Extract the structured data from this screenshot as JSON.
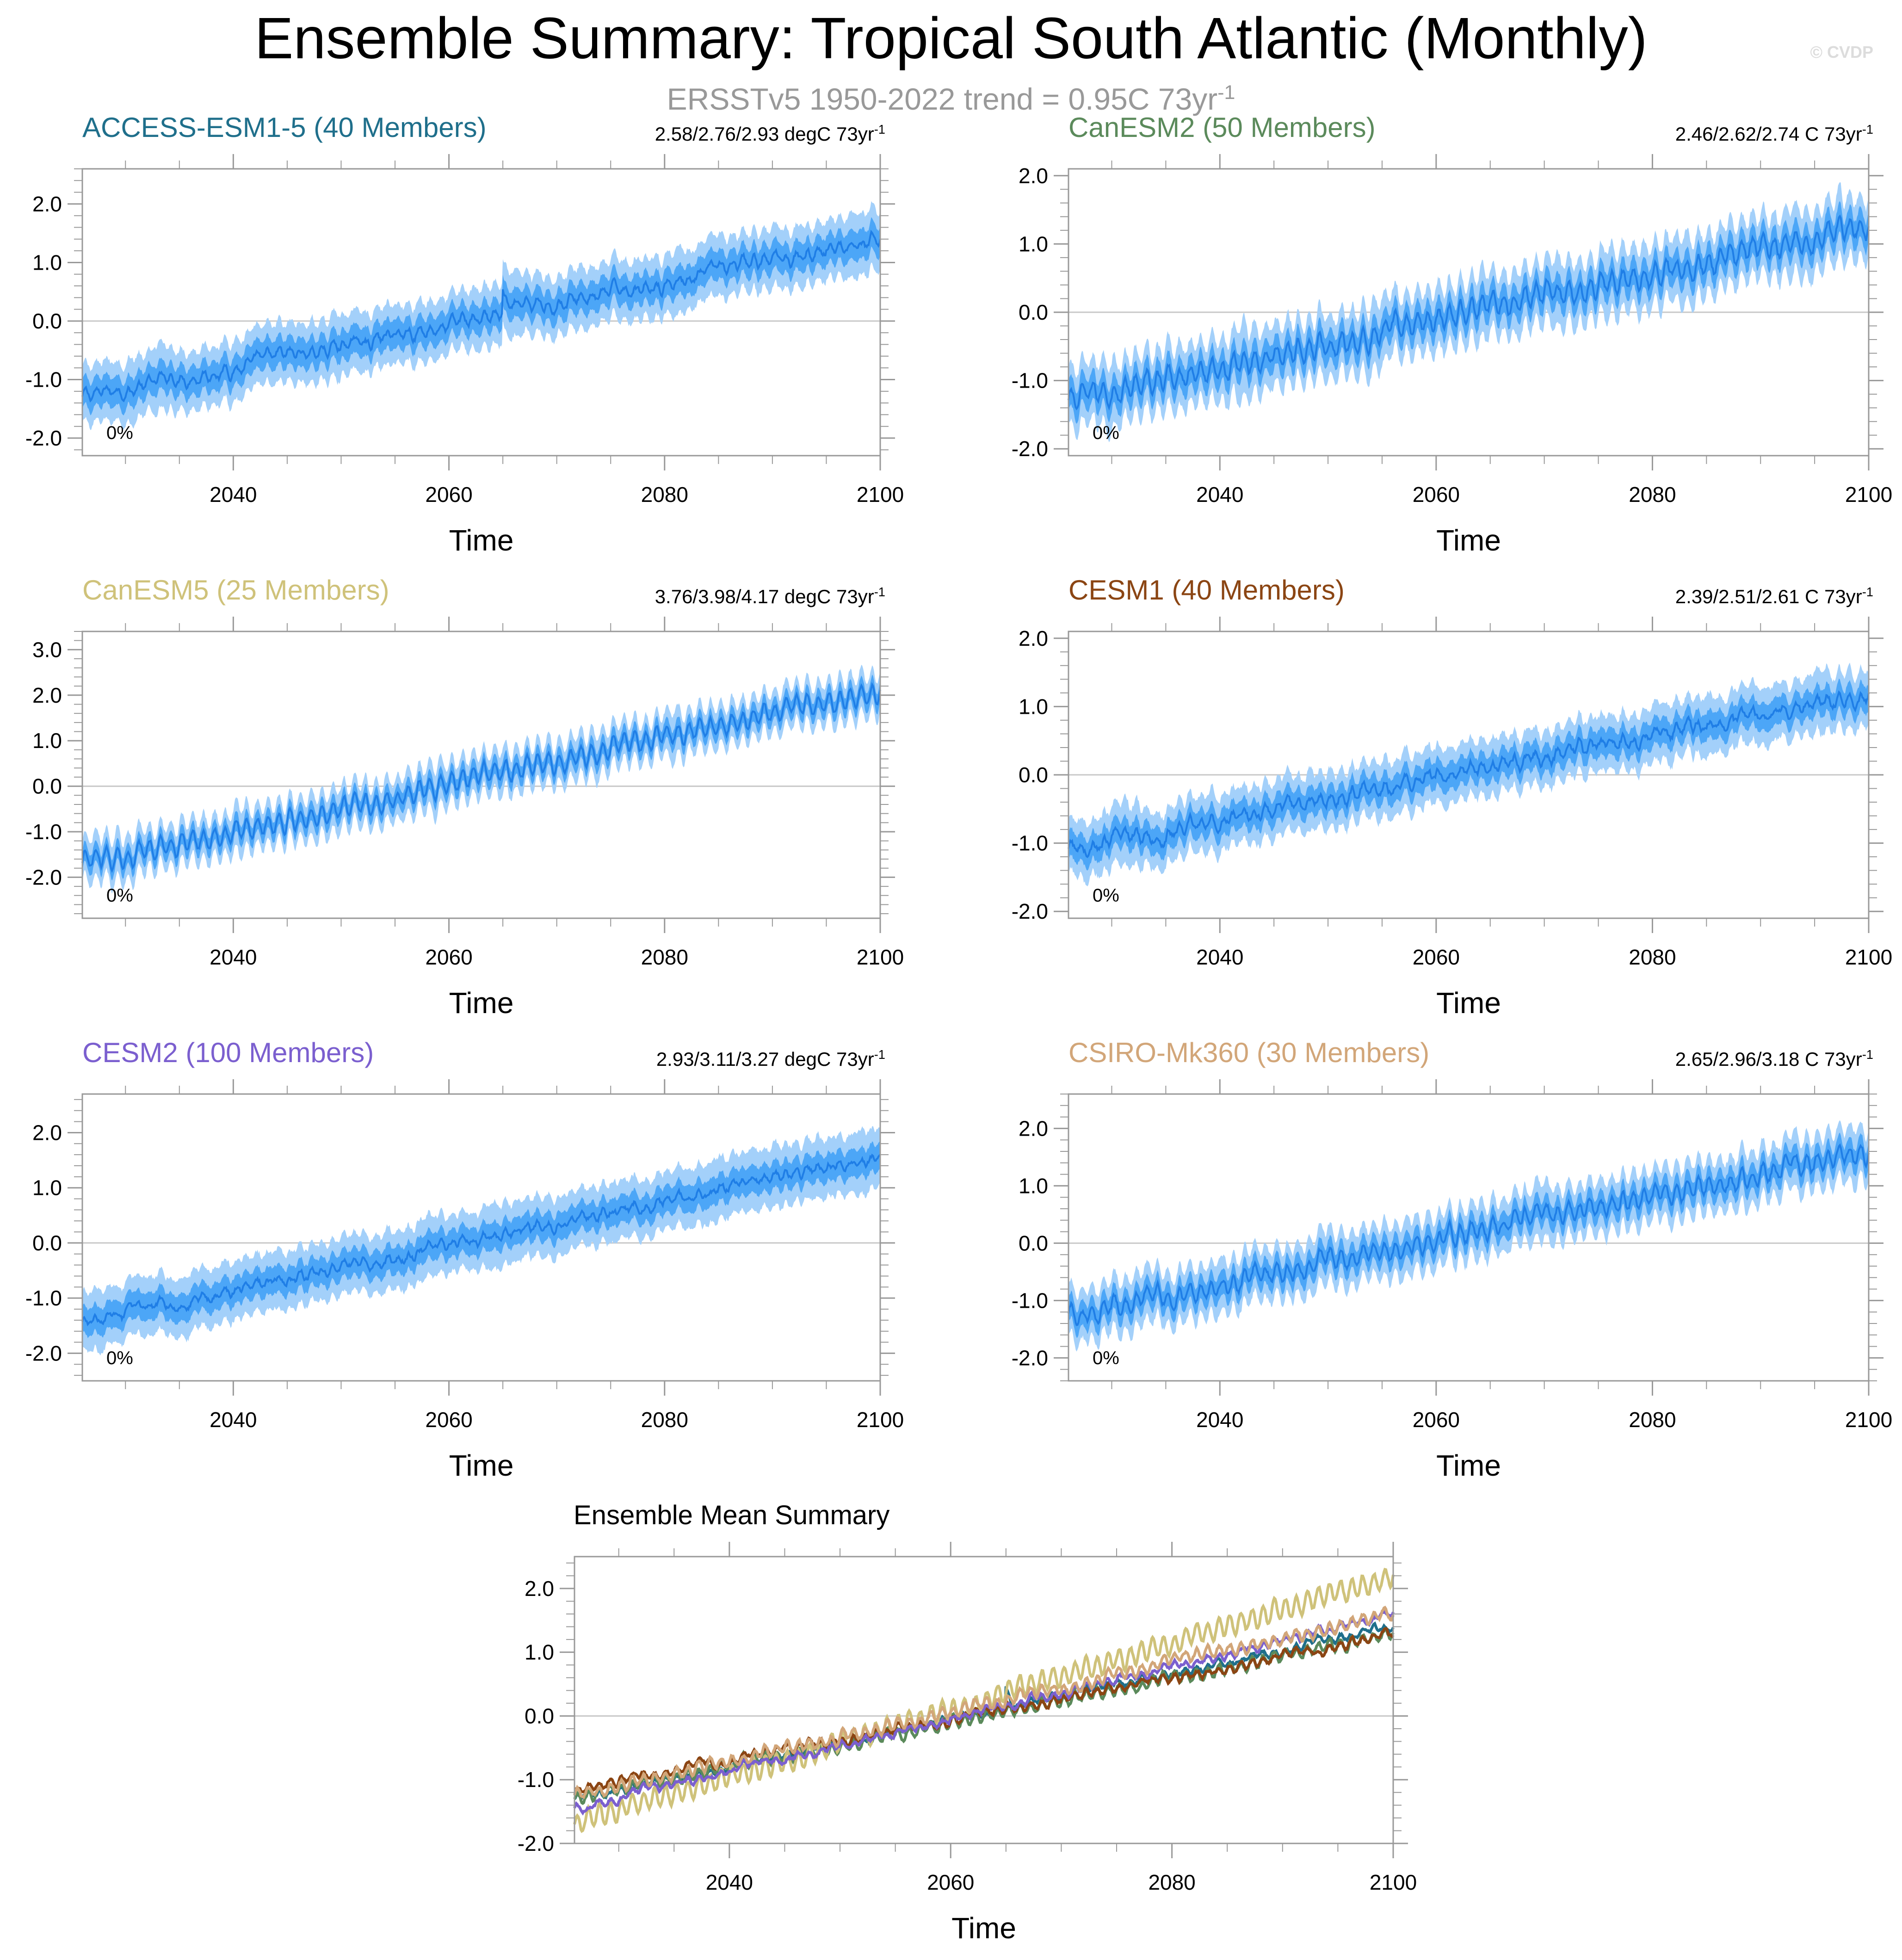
{
  "header": {
    "title": "Ensemble Summary: Tropical South Atlantic (Monthly)",
    "subtitle_main": "ERSSTv5 1950-2022 trend = 0.95C 73yr",
    "subtitle_sup": "-1",
    "copyright": "© CVDP"
  },
  "colors": {
    "band_outer": "#a3d0fa",
    "band_inner": "#4ca6f7",
    "mean_line": "#1f7ee6",
    "zero_line": "#c8c8c8",
    "frame": "#999999"
  },
  "chart_data": [
    {
      "type": "area",
      "name": "ACCESS-ESM1-5",
      "title": "ACCESS-ESM1-5 (40 Members)",
      "title_color": "#1f6f8b",
      "trend_text": "2.58/2.76/2.93 degC 73yr",
      "trend_sup": "-1",
      "xlabel": "Time",
      "xlim": [
        2026,
        2100
      ],
      "ylim": [
        -2.3,
        2.6
      ],
      "yticks": [
        -2.0,
        -1.0,
        0.0,
        1.0,
        2.0
      ],
      "ytick_labels": [
        "-2.0",
        "-1.0",
        "0.0",
        "1.0",
        "2.0"
      ],
      "xticks": [
        2040,
        2060,
        2080,
        2100
      ],
      "xtick_labels": [
        "2040",
        "2060",
        "2080",
        "2100"
      ],
      "percent_label": "0%",
      "mean_start": -1.3,
      "mean_end": 1.4,
      "inner_half": 0.25,
      "outer_half": 0.48,
      "seasonal_amp": 0.08,
      "feature": {
        "year": 2065,
        "height": 0.35
      }
    },
    {
      "type": "area",
      "name": "CanESM2",
      "title": "CanESM2 (50 Members)",
      "title_color": "#5b8a5b",
      "trend_text": "2.46/2.62/2.74 C 73yr",
      "trend_sup": "-1",
      "xlabel": "Time",
      "xlim": [
        2026,
        2100
      ],
      "ylim": [
        -2.1,
        2.1
      ],
      "yticks": [
        -2.0,
        -1.0,
        0.0,
        1.0,
        2.0
      ],
      "ytick_labels": [
        "-2.0",
        "-1.0",
        "0.0",
        "1.0",
        "2.0"
      ],
      "xticks": [
        2040,
        2060,
        2080,
        2100
      ],
      "xtick_labels": [
        "2040",
        "2060",
        "2080",
        "2100"
      ],
      "percent_label": "0%",
      "mean_start": -1.3,
      "mean_end": 1.3,
      "inner_half": 0.22,
      "outer_half": 0.42,
      "seasonal_amp": 0.14,
      "feature": null
    },
    {
      "type": "area",
      "name": "CanESM5",
      "title": "CanESM5 (25 Members)",
      "title_color": "#cfc27a",
      "trend_text": "3.76/3.98/4.17 degC 73yr",
      "trend_sup": "-1",
      "xlabel": "Time",
      "xlim": [
        2026,
        2100
      ],
      "ylim": [
        -2.9,
        3.4
      ],
      "yticks": [
        -2.0,
        -1.0,
        0.0,
        1.0,
        2.0,
        3.0
      ],
      "ytick_labels": [
        "-2.0",
        "-1.0",
        "0.0",
        "1.0",
        "2.0",
        "3.0"
      ],
      "xticks": [
        2040,
        2060,
        2080,
        2100
      ],
      "xtick_labels": [
        "2040",
        "2060",
        "2080",
        "2100"
      ],
      "percent_label": "0%",
      "mean_start": -1.7,
      "mean_end": 2.1,
      "inner_half": 0.22,
      "outer_half": 0.42,
      "seasonal_amp": 0.2,
      "feature": null
    },
    {
      "type": "area",
      "name": "CESM1",
      "title": "CESM1 (40 Members)",
      "title_color": "#8b4513",
      "trend_text": "2.39/2.51/2.61 C 73yr",
      "trend_sup": "-1",
      "xlabel": "Time",
      "xlim": [
        2026,
        2100
      ],
      "ylim": [
        -2.1,
        2.1
      ],
      "yticks": [
        -2.0,
        -1.0,
        0.0,
        1.0,
        2.0
      ],
      "ytick_labels": [
        "-2.0",
        "-1.0",
        "0.0",
        "1.0",
        "2.0"
      ],
      "xticks": [
        2040,
        2060,
        2080,
        2100
      ],
      "xtick_labels": [
        "2040",
        "2060",
        "2080",
        "2100"
      ],
      "percent_label": "0%",
      "mean_start": -1.1,
      "mean_end": 1.2,
      "inner_half": 0.2,
      "outer_half": 0.38,
      "seasonal_amp": 0.07,
      "feature": null
    },
    {
      "type": "area",
      "name": "CESM2",
      "title": "CESM2 (100 Members)",
      "title_color": "#7b5fcf",
      "trend_text": "2.93/3.11/3.27 degC 73yr",
      "trend_sup": "-1",
      "xlabel": "Time",
      "xlim": [
        2026,
        2100
      ],
      "ylim": [
        -2.5,
        2.7
      ],
      "yticks": [
        -2.0,
        -1.0,
        0.0,
        1.0,
        2.0
      ],
      "ytick_labels": [
        "-2.0",
        "-1.0",
        "0.0",
        "1.0",
        "2.0"
      ],
      "xticks": [
        2040,
        2060,
        2080,
        2100
      ],
      "xtick_labels": [
        "2040",
        "2060",
        "2080",
        "2100"
      ],
      "percent_label": "0%",
      "mean_start": -1.45,
      "mean_end": 1.6,
      "inner_half": 0.25,
      "outer_half": 0.5,
      "seasonal_amp": 0.06,
      "feature": null
    },
    {
      "type": "area",
      "name": "CSIRO-Mk360",
      "title": "CSIRO-Mk360 (30 Members)",
      "title_color": "#d2a679",
      "trend_text": "2.65/2.96/3.18 C 73yr",
      "trend_sup": "-1",
      "xlabel": "Time",
      "xlim": [
        2026,
        2100
      ],
      "ylim": [
        -2.4,
        2.6
      ],
      "yticks": [
        -2.0,
        -1.0,
        0.0,
        1.0,
        2.0
      ],
      "ytick_labels": [
        "-2.0",
        "-1.0",
        "0.0",
        "1.0",
        "2.0"
      ],
      "xticks": [
        2040,
        2060,
        2080,
        2100
      ],
      "xtick_labels": [
        "2040",
        "2060",
        "2080",
        "2100"
      ],
      "percent_label": "0%",
      "mean_start": -1.25,
      "mean_end": 1.6,
      "inner_half": 0.22,
      "outer_half": 0.42,
      "seasonal_amp": 0.14,
      "feature": null
    },
    {
      "type": "line",
      "name": "Ensemble Mean Summary",
      "title": "Ensemble Mean Summary",
      "xlabel": "Time",
      "xlim": [
        2026,
        2100
      ],
      "ylim": [
        -2.0,
        2.5
      ],
      "yticks": [
        -2.0,
        -1.0,
        0.0,
        1.0,
        2.0
      ],
      "ytick_labels": [
        "-2.0",
        "-1.0",
        "0.0",
        "1.0",
        "2.0"
      ],
      "xticks": [
        2040,
        2060,
        2080,
        2100
      ],
      "xtick_labels": [
        "2040",
        "2060",
        "2080",
        "2100"
      ],
      "series": [
        {
          "name": "ACCESS-ESM1-5",
          "color": "#1f6f8b",
          "start": -1.3,
          "end": 1.4,
          "seasonal_amp": 0.04,
          "feature": {
            "year": 2065,
            "height": 0.35
          }
        },
        {
          "name": "CanESM2",
          "color": "#5b8a5b",
          "start": -1.3,
          "end": 1.3,
          "seasonal_amp": 0.08,
          "feature": null
        },
        {
          "name": "CanESM5",
          "color": "#cfc27a",
          "start": -1.7,
          "end": 2.2,
          "seasonal_amp": 0.15,
          "feature": null
        },
        {
          "name": "CESM1",
          "color": "#8b4513",
          "start": -1.15,
          "end": 1.25,
          "seasonal_amp": 0.05,
          "feature": null
        },
        {
          "name": "CESM2",
          "color": "#7b5fcf",
          "start": -1.45,
          "end": 1.6,
          "seasonal_amp": 0.04,
          "feature": null
        },
        {
          "name": "CSIRO-Mk360",
          "color": "#d2a679",
          "start": -1.25,
          "end": 1.6,
          "seasonal_amp": 0.08,
          "feature": null
        }
      ]
    }
  ]
}
